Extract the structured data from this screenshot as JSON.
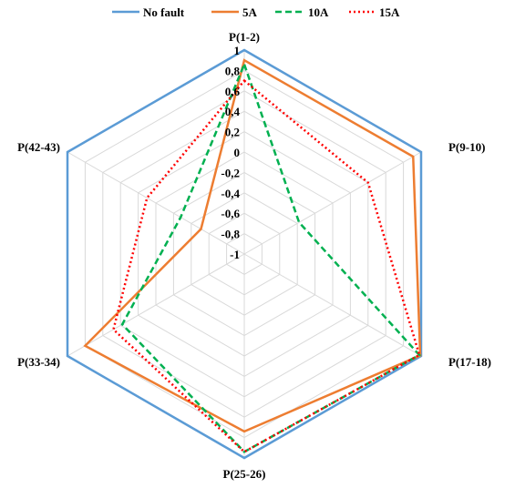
{
  "chart_data": {
    "type": "radar",
    "categories": [
      "P(1-2)",
      "P(9-10)",
      "P(17-18)",
      "P(25-26)",
      "P(33-34)",
      "P(42-43)"
    ],
    "r_ticks": [
      "1",
      "0,8",
      "0,6",
      "0,4",
      "0,2",
      "0",
      "-0,2",
      "-0,4",
      "-0,6",
      "-0,8",
      "-1"
    ],
    "r_range": [
      -1,
      1
    ],
    "grid": true,
    "legend_position": "top",
    "series": [
      {
        "name": "No fault",
        "color": "#5b9bd5",
        "dash": "solid",
        "values": [
          1,
          1,
          1,
          1,
          1,
          1
        ]
      },
      {
        "name": "5A",
        "color": "#ed7d31",
        "dash": "solid",
        "values": [
          0.9,
          0.91,
          0.99,
          0.74,
          0.8,
          -0.51
        ]
      },
      {
        "name": "10A",
        "color": "#00b050",
        "dash": "dashed",
        "values": [
          0.86,
          -0.38,
          0.98,
          0.94,
          0.38,
          -0.28
        ]
      },
      {
        "name": "15A",
        "color": "#ff0000",
        "dash": "dotted",
        "values": [
          0.7,
          0.4,
          0.98,
          0.94,
          0.48,
          0.1
        ]
      }
    ]
  }
}
